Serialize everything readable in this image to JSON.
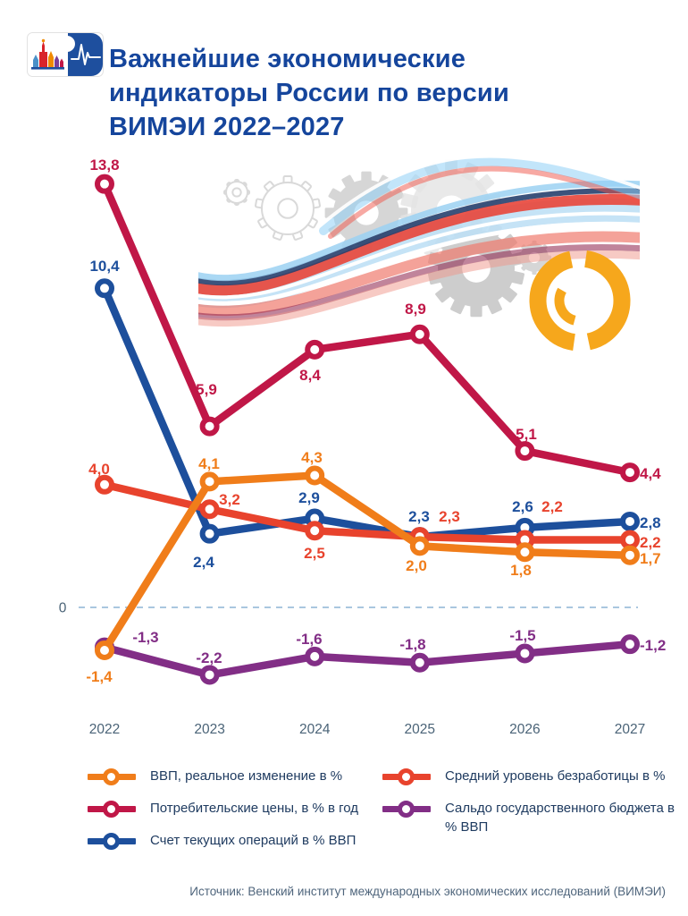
{
  "header": {
    "title_lines": [
      "Важнейшие экономические",
      "индикаторы России по версии",
      "ВИМЭИ 2022–2027"
    ]
  },
  "chart_data": {
    "type": "line",
    "categories": [
      "2022",
      "2023",
      "2024",
      "2025",
      "2026",
      "2027"
    ],
    "zero_label": "0",
    "series": [
      {
        "id": "gdp",
        "name": "ВВП, реальное изменение в %",
        "color": "#F07D1A",
        "values": [
          -1.4,
          4.1,
          4.3,
          2.0,
          1.8,
          1.7
        ]
      },
      {
        "id": "cpi",
        "name": "Потребительские цены, в % в год",
        "color": "#C01747",
        "values": [
          13.8,
          5.9,
          8.4,
          8.9,
          5.1,
          4.4
        ]
      },
      {
        "id": "current-account",
        "name": "Счет текущих операций в % ВВП",
        "color": "#1D4F9C",
        "values": [
          10.4,
          2.4,
          2.9,
          2.3,
          2.6,
          2.8
        ]
      },
      {
        "id": "unemployment",
        "name": "Средний уровень безработицы в %",
        "color": "#E8432D",
        "values": [
          4.0,
          3.2,
          2.5,
          2.3,
          2.2,
          2.2
        ]
      },
      {
        "id": "budget-balance",
        "name": "Сальдо государственного бюджета в % ВВП",
        "color": "#822E86",
        "values": [
          -1.3,
          -2.2,
          -1.6,
          -1.8,
          -1.5,
          -1.2
        ]
      }
    ],
    "ylim": [
      -3,
      15
    ],
    "grid": "zero-line-only",
    "legend_position": "bottom",
    "value_decimal_separator": ","
  },
  "footer": {
    "source": "Источник: Венский институт международных экономических исследований (ВИМЭИ)"
  },
  "colors": {
    "title": "#15459C",
    "axis_text": "#4A6377",
    "zero_line": "#A9C7DF",
    "logo_ring": "#F6A71C"
  }
}
